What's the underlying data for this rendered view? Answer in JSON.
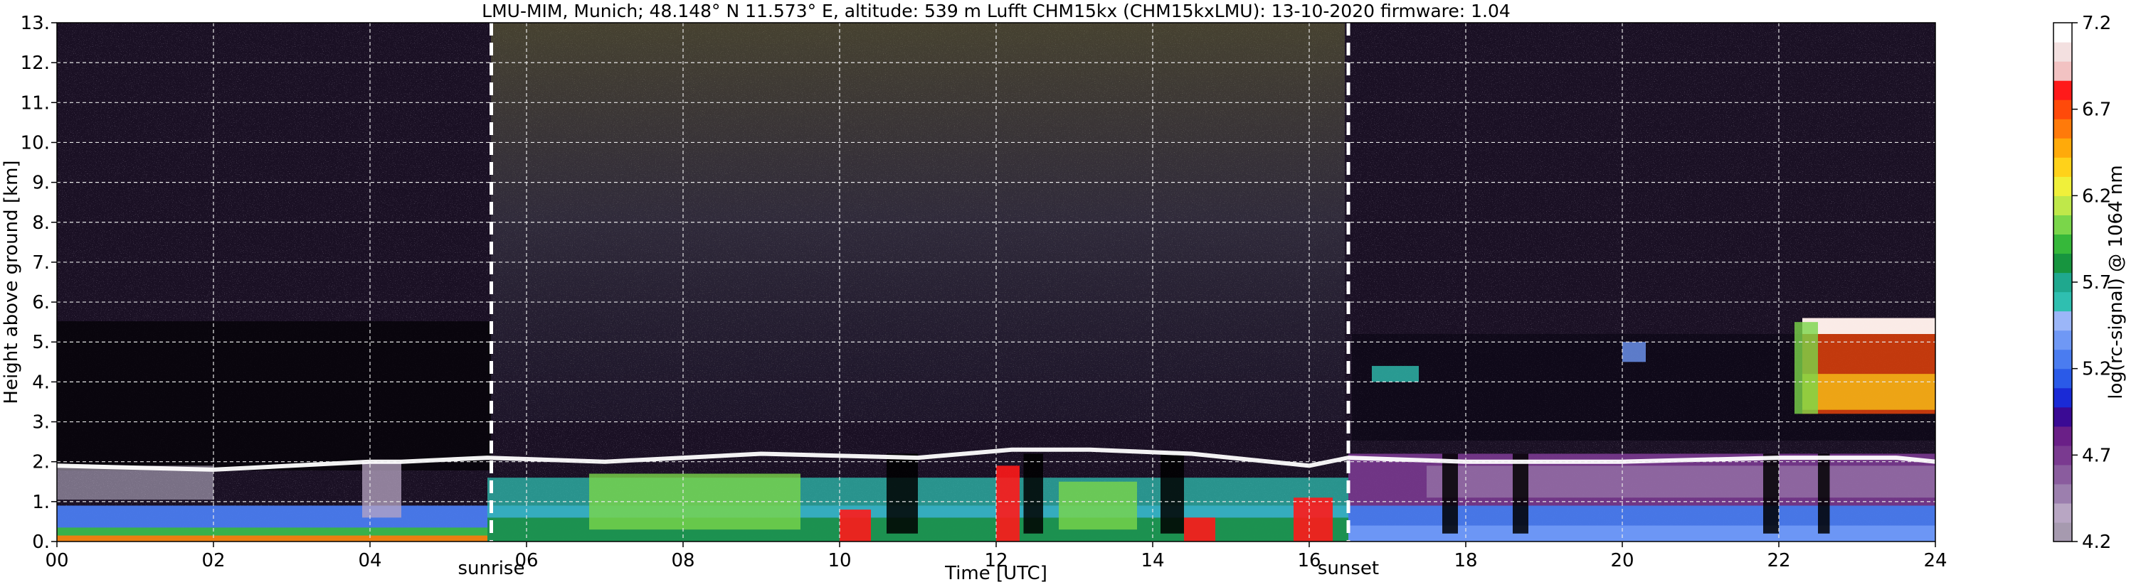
{
  "chart_data": {
    "type": "heatmap",
    "title": "LMU-MIM, Munich; 48.148° N 11.573° E, altitude: 539 m    Lufft CHM15kx (CHM15kxLMU): 13-10-2020    firmware: 1.04",
    "xlabel": "Time [UTC]",
    "ylabel": "Height above ground [km]",
    "xlim": [
      0,
      24
    ],
    "ylim": [
      0,
      13
    ],
    "x_ticks": [
      "00",
      "02",
      "04",
      "06",
      "08",
      "10",
      "12",
      "14",
      "16",
      "18",
      "20",
      "22",
      "24"
    ],
    "y_ticks": [
      "0.",
      "1.",
      "2.",
      "3.",
      "4.",
      "5.",
      "6.",
      "7.",
      "8.",
      "9.",
      "10.",
      "11.",
      "12.",
      "13."
    ],
    "grid": true,
    "events": [
      {
        "label": "sunrise",
        "time": 5.55
      },
      {
        "label": "sunset",
        "time": 16.5
      }
    ],
    "colorbar": {
      "label": "log(rc-signal) @ 1064 nm",
      "range": [
        4.2,
        7.2
      ],
      "ticks": [
        "4.2",
        "4.7",
        "5.2",
        "5.7",
        "6.2",
        "6.7",
        "7.2"
      ],
      "colors": [
        "#a69aaf",
        "#b8a6c3",
        "#9c7fae",
        "#8a5c9e",
        "#7a3a90",
        "#6a1f87",
        "#3a0a94",
        "#1a2ad6",
        "#2a5ae8",
        "#4a7cf0",
        "#6f98f5",
        "#9bb6f8",
        "#2fbfb0",
        "#1fa88e",
        "#17953f",
        "#36b83a",
        "#7ad64a",
        "#bfe84a",
        "#f0f03a",
        "#ffd21a",
        "#ffaa0a",
        "#ff7a0a",
        "#ff4a0a",
        "#ff1a1a",
        "#f2c2c2",
        "#f3e0e0",
        "#ffffff"
      ]
    },
    "series": [
      {
        "name": "",
        "x": [
          0.0,
          2.0,
          4.0,
          4.4,
          5.5,
          7.0,
          9.0,
          11.0,
          12.2,
          13.2,
          14.5,
          16.0,
          16.5,
          18.0,
          20.0,
          22.0,
          23.5,
          24.0
        ],
        "y": [
          1.9,
          1.8,
          2.0,
          2.0,
          2.1,
          2.0,
          2.2,
          2.1,
          2.3,
          2.3,
          2.2,
          1.9,
          2.1,
          2.0,
          2.0,
          2.1,
          2.1,
          2.0
        ]
      }
    ]
  }
}
